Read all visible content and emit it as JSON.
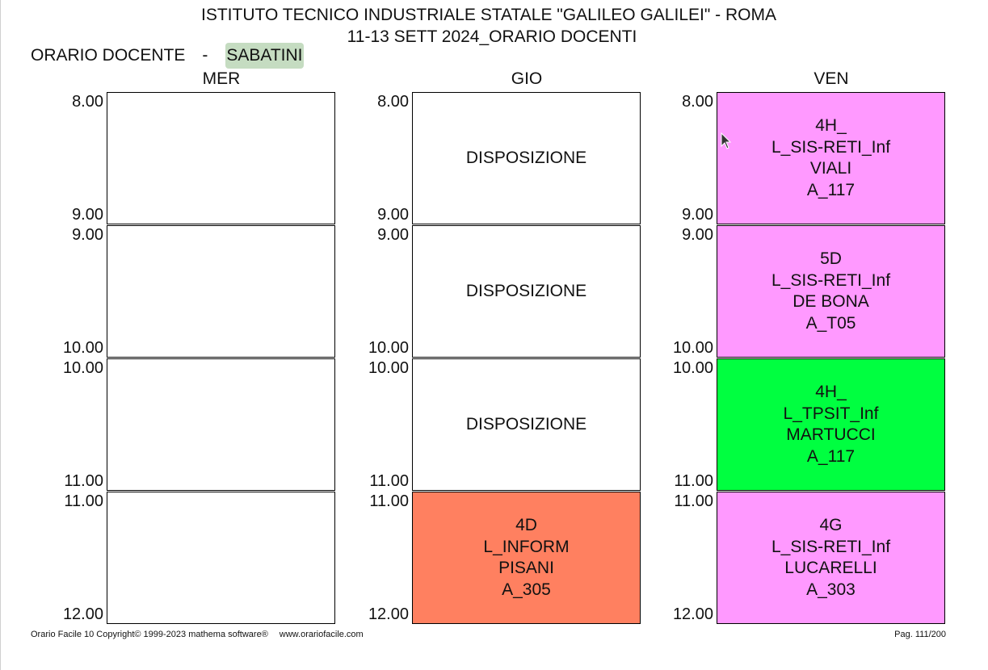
{
  "header": {
    "title": "ISTITUTO TECNICO INDUSTRIALE STATALE \"GALILEO GALILEI\" - ROMA",
    "subtitle": "11-13 SETT 2024_ORARIO DOCENTI",
    "label": "ORARIO DOCENTE",
    "separator": "-",
    "teacher": "SABATINI"
  },
  "colors": {
    "teacher_highlight": "#c5dcc1",
    "pink": "#ff99ff",
    "green": "#00ff40",
    "orange": "#ff8060"
  },
  "days": [
    {
      "label": "MER",
      "slots": [
        {
          "start": "8.00",
          "end": "9.00",
          "lines": []
        },
        {
          "start": "9.00",
          "end": "10.00",
          "lines": []
        },
        {
          "start": "10.00",
          "end": "11.00",
          "lines": []
        },
        {
          "start": "11.00",
          "end": "12.00",
          "lines": []
        }
      ]
    },
    {
      "label": "GIO",
      "slots": [
        {
          "start": "8.00",
          "end": "9.00",
          "lines": [
            "DISPOSIZIONE"
          ]
        },
        {
          "start": "9.00",
          "end": "10.00",
          "lines": [
            "DISPOSIZIONE"
          ]
        },
        {
          "start": "10.00",
          "end": "11.00",
          "lines": [
            "DISPOSIZIONE"
          ]
        },
        {
          "start": "11.00",
          "end": "12.00",
          "color": "#ff8060",
          "lines": [
            "4D",
            "L_INFORM",
            "PISANI",
            "A_305"
          ]
        }
      ]
    },
    {
      "label": "VEN",
      "slots": [
        {
          "start": "8.00",
          "end": "9.00",
          "color": "#ff99ff",
          "lines": [
            "4H_",
            "L_SIS-RETI_Inf",
            "VIALI",
            "A_117"
          ]
        },
        {
          "start": "9.00",
          "end": "10.00",
          "color": "#ff99ff",
          "lines": [
            "5D",
            "L_SIS-RETI_Inf",
            "DE BONA",
            "A_T05"
          ]
        },
        {
          "start": "10.00",
          "end": "11.00",
          "color": "#00ff40",
          "lines": [
            "4H_",
            "L_TPSIT_Inf",
            "MARTUCCI",
            "A_117"
          ]
        },
        {
          "start": "11.00",
          "end": "12.00",
          "color": "#ff99ff",
          "lines": [
            "4G",
            "L_SIS-RETI_Inf",
            "LUCARELLI",
            "A_303"
          ]
        }
      ]
    }
  ],
  "footer": {
    "copyright": "Orario Facile 10  Copyright© 1999-2023 mathema software®",
    "url": "www.orariofacile.com",
    "page": "Pag. 111/200"
  }
}
